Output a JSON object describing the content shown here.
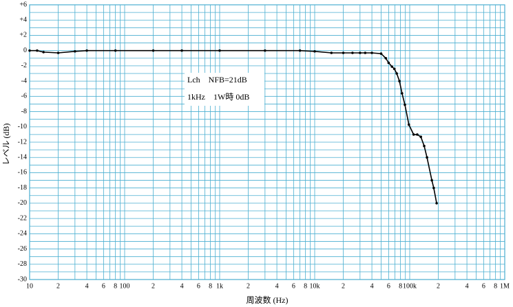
{
  "chart_data": {
    "type": "line",
    "xlabel": "周波数 (Hz)",
    "ylabel": "レベル (dB)",
    "annotations": [
      "Lch　NFB=21dB",
      "1kHz　1W時 0dB"
    ],
    "xscale": "log",
    "xlim": [
      10,
      1000000
    ],
    "ylim": [
      -30,
      6
    ],
    "grid": true,
    "grid_color": "#49aed0",
    "xticks": [
      {
        "value": 10,
        "label": "10"
      },
      {
        "value": 20,
        "label": "2"
      },
      {
        "value": 40,
        "label": "4"
      },
      {
        "value": 60,
        "label": "6"
      },
      {
        "value": 80,
        "label": "8"
      },
      100,
      {
        "value": 200,
        "label": "2"
      },
      {
        "value": 400,
        "label": "4"
      },
      {
        "value": 600,
        "label": "6"
      },
      {
        "value": 800,
        "label": "8"
      },
      {
        "value": 1000,
        "label": "1k"
      },
      {
        "value": 2000,
        "label": "2"
      },
      {
        "value": 4000,
        "label": "4"
      },
      {
        "value": 6000,
        "label": "6"
      },
      {
        "value": 8000,
        "label": "8"
      },
      {
        "value": 10000,
        "label": "10k"
      },
      {
        "value": 20000,
        "label": "2"
      },
      {
        "value": 40000,
        "label": "4"
      },
      {
        "value": 60000,
        "label": "6"
      },
      {
        "value": 80000,
        "label": "8"
      },
      {
        "value": 100000,
        "label": "100k"
      },
      {
        "value": 200000,
        "label": "2"
      },
      {
        "value": 400000,
        "label": "4"
      },
      {
        "value": 600000,
        "label": "6"
      },
      {
        "value": 800000,
        "label": "8"
      },
      {
        "value": 1000000,
        "label": "1M"
      }
    ],
    "xgrid": [
      10,
      20,
      30,
      40,
      50,
      60,
      70,
      80,
      90,
      100,
      200,
      300,
      400,
      500,
      600,
      700,
      800,
      900,
      1000,
      2000,
      3000,
      4000,
      5000,
      6000,
      7000,
      8000,
      9000,
      10000,
      20000,
      30000,
      40000,
      50000,
      60000,
      70000,
      80000,
      90000,
      100000,
      200000,
      300000,
      400000,
      500000,
      600000,
      700000,
      800000,
      900000,
      1000000
    ],
    "yticks": [
      {
        "value": 6,
        "label": "+6"
      },
      {
        "value": 4,
        "label": "+4"
      },
      {
        "value": 2,
        "label": "+2"
      },
      0,
      -2,
      -4,
      -6,
      -8,
      -10,
      -12,
      -14,
      -16,
      -18,
      -20,
      -22,
      -24,
      -26,
      -28,
      -30
    ],
    "ygrid": [
      6,
      5,
      4,
      3,
      2,
      1,
      0,
      -1,
      -2,
      -3,
      -4,
      -5,
      -6,
      -7,
      -8,
      -9,
      -10,
      -11,
      -12,
      -13,
      -14,
      -15,
      -16,
      -17,
      -18,
      -19,
      -20,
      -21,
      -22,
      -23,
      -24,
      -25,
      -26,
      -27,
      -28,
      -29,
      -30
    ],
    "x": [
      10,
      12,
      14,
      20,
      30,
      40,
      80,
      200,
      400,
      1000,
      3000,
      7000,
      10000,
      15000,
      20000,
      25000,
      30000,
      34000,
      40000,
      50000,
      56000,
      60000,
      65000,
      69000,
      73000,
      78000,
      83000,
      89000,
      98000,
      110000,
      120000,
      131000,
      142000,
      152000,
      171000,
      179000,
      192000
    ],
    "series": [
      {
        "color": "#000000",
        "values": [
          0,
          0,
          -0.2,
          -0.3,
          -0.1,
          0,
          0,
          0,
          0,
          0,
          0,
          0,
          -0.1,
          -0.3,
          -0.3,
          -0.3,
          -0.3,
          -0.3,
          -0.3,
          -0.4,
          -1.0,
          -1.6,
          -2.1,
          -2.4,
          -3.0,
          -4.0,
          -5.6,
          -7.1,
          -9.7,
          -11.0,
          -11.0,
          -11.3,
          -12.5,
          -14.0,
          -17.0,
          -18.0,
          -20.0
        ]
      }
    ]
  }
}
